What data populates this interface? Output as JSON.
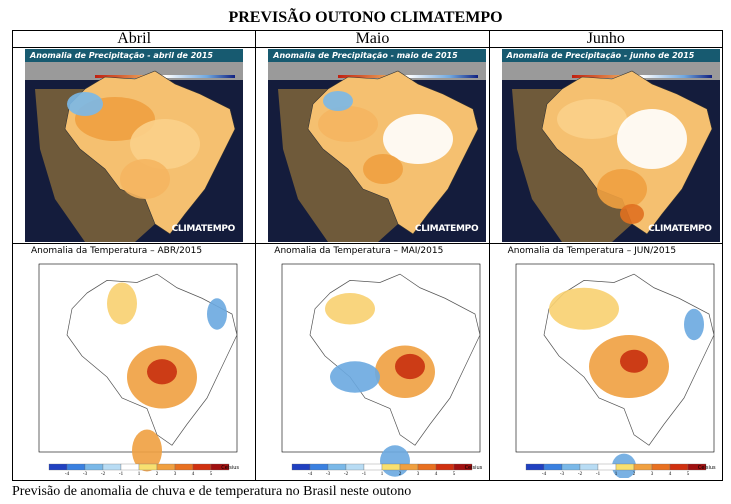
{
  "title": "PREVISÃO OUTONO CLIMATEMPO",
  "columns": [
    {
      "month": "Abril",
      "precip_title": "Anomalia de Precipitação - abril de 2015",
      "temp_title": "Anomalia da Temperatura  –  ABR/2015"
    },
    {
      "month": "Maio",
      "precip_title": "Anomalia de Precipitação - maio de 2015",
      "temp_title": "Anomalia da Temperatura  –  MAI/2015"
    },
    {
      "month": "Junho",
      "precip_title": "Anomalia de Precipitação - junho de 2015",
      "temp_title": "Anomalia da Temperatura  –  JUN/2015"
    }
  ],
  "precip_logo": "CLIMATEMPO",
  "temp_scale": {
    "ticks": [
      "-4",
      "-3",
      "-2",
      "-1",
      "1",
      "2",
      "3",
      "4",
      "5"
    ],
    "unit": "Celsius"
  },
  "colors": {
    "orange": "#f0a040",
    "red": "#d04010",
    "blue": "#6aa8e0",
    "navy": "#141c3c",
    "teal": "#175a70"
  },
  "caption": "Previsão de anomalia de chuva e de temperatura no Brasil neste outono"
}
